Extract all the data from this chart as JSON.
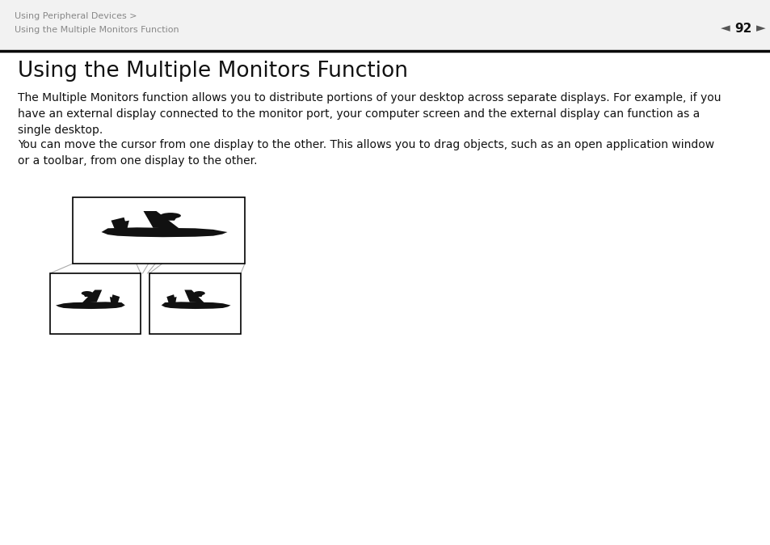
{
  "bg_color": "#ffffff",
  "header_text_color": "#888888",
  "header_line1": "Using Peripheral Devices >",
  "header_line2": "Using the Multiple Monitors Function",
  "page_number": "92",
  "title": "Using the Multiple Monitors Function",
  "title_fontsize": 19,
  "body_text1": "The Multiple Monitors function allows you to distribute portions of your desktop across separate displays. For example, if you\nhave an external display connected to the monitor port, your computer screen and the external display can function as a\nsingle desktop.",
  "body_text2": "You can move the cursor from one display to the other. This allows you to drag objects, such as an open application window\nor a toolbar, from one display to the other.",
  "body_fontsize": 10.0,
  "header_fontsize": 8.0,
  "line_color": "#aaaaaa",
  "box_color": "#000000",
  "plane_color": "#111111"
}
